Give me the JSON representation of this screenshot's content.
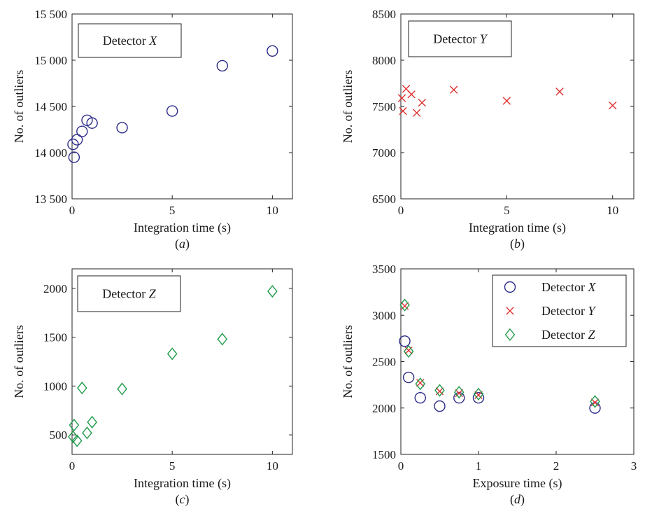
{
  "chart_data": [
    {
      "type": "scatter",
      "panel_label": "(a)",
      "xlabel": "Integration time (s)",
      "ylabel": "No. of outliers",
      "xlim": [
        0,
        11
      ],
      "ylim": [
        13500,
        15500
      ],
      "xticks": [
        0,
        5,
        10
      ],
      "xtick_labels": [
        "0",
        "5",
        "10"
      ],
      "yticks": [
        13500,
        14000,
        14500,
        15000,
        15500
      ],
      "ytick_labels": [
        "13 500",
        "14 000",
        "14 500",
        "15 000",
        "15 500"
      ],
      "grid": false,
      "legend_position": "top-left",
      "series": [
        {
          "name_prefix": "Detector ",
          "name_italic": "X",
          "marker": "circle",
          "color": "#2b2b8a",
          "points": [
            [
              0.05,
              14090
            ],
            [
              0.1,
              13950
            ],
            [
              0.25,
              14140
            ],
            [
              0.5,
              14230
            ],
            [
              0.75,
              14350
            ],
            [
              1.0,
              14320
            ],
            [
              2.5,
              14270
            ],
            [
              5.0,
              14450
            ],
            [
              7.5,
              14940
            ],
            [
              10.0,
              15100
            ]
          ]
        }
      ]
    },
    {
      "type": "scatter",
      "panel_label": "(b)",
      "xlabel": "Integration time (s)",
      "ylabel": "No. of outliers",
      "xlim": [
        0,
        11
      ],
      "ylim": [
        6500,
        8500
      ],
      "xticks": [
        0,
        5,
        10
      ],
      "xtick_labels": [
        "0",
        "5",
        "10"
      ],
      "yticks": [
        6500,
        7000,
        7500,
        8000,
        8500
      ],
      "ytick_labels": [
        "6500",
        "7000",
        "7500",
        "8000",
        "8500"
      ],
      "grid": false,
      "legend_position": "top-left",
      "series": [
        {
          "name_prefix": "Detector ",
          "name_italic": "Y",
          "marker": "x",
          "color": "#e03030",
          "points": [
            [
              0.05,
              7590
            ],
            [
              0.1,
              7450
            ],
            [
              0.25,
              7690
            ],
            [
              0.5,
              7630
            ],
            [
              0.75,
              7430
            ],
            [
              1.0,
              7540
            ],
            [
              2.5,
              7680
            ],
            [
              5.0,
              7560
            ],
            [
              7.5,
              7660
            ],
            [
              10.0,
              7510
            ]
          ]
        }
      ]
    },
    {
      "type": "scatter",
      "panel_label": "(c)",
      "xlabel": "Integration time (s)",
      "ylabel": "No. of outliers",
      "xlim": [
        0,
        11
      ],
      "ylim": [
        300,
        2200
      ],
      "xticks": [
        0,
        5,
        10
      ],
      "xtick_labels": [
        "0",
        "5",
        "10"
      ],
      "yticks": [
        500,
        1000,
        1500,
        2000
      ],
      "ytick_labels": [
        "500",
        "1000",
        "1500",
        "2000"
      ],
      "grid": false,
      "legend_position": "top-left",
      "series": [
        {
          "name_prefix": "Detector ",
          "name_italic": "Z",
          "marker": "diamond",
          "color": "#1f9a4a",
          "points": [
            [
              0.05,
              480
            ],
            [
              0.1,
              600
            ],
            [
              0.25,
              440
            ],
            [
              0.5,
              980
            ],
            [
              0.75,
              520
            ],
            [
              1.0,
              630
            ],
            [
              2.5,
              970
            ],
            [
              5.0,
              1330
            ],
            [
              7.5,
              1480
            ],
            [
              10.0,
              1970
            ]
          ]
        }
      ]
    },
    {
      "type": "scatter",
      "panel_label": "(d)",
      "xlabel": "Exposure time (s)",
      "ylabel": "No. of outliers",
      "xlim": [
        0,
        3
      ],
      "ylim": [
        1500,
        3500
      ],
      "xticks": [
        0,
        1,
        2,
        3
      ],
      "xtick_labels": [
        "0",
        "1",
        "2",
        "3"
      ],
      "yticks": [
        1500,
        2000,
        2500,
        3000,
        3500
      ],
      "ytick_labels": [
        "1500",
        "2000",
        "2500",
        "3000",
        "3500"
      ],
      "grid": false,
      "legend_position": "top-right",
      "series": [
        {
          "name_prefix": "Detector ",
          "name_italic": "X",
          "marker": "circle",
          "color": "#2b2b8a",
          "points": [
            [
              0.05,
              2720
            ],
            [
              0.1,
              2330
            ],
            [
              0.25,
              2110
            ],
            [
              0.5,
              2020
            ],
            [
              0.75,
              2110
            ],
            [
              1.0,
              2110
            ],
            [
              2.5,
              2000
            ]
          ]
        },
        {
          "name_prefix": "Detector ",
          "name_italic": "Y",
          "marker": "x",
          "color": "#e03030",
          "points": [
            [
              0.05,
              3100
            ],
            [
              0.1,
              2620
            ],
            [
              0.25,
              2270
            ],
            [
              0.5,
              2180
            ],
            [
              0.75,
              2160
            ],
            [
              1.0,
              2140
            ],
            [
              2.5,
              2060
            ]
          ]
        },
        {
          "name_prefix": "Detector ",
          "name_italic": "Z",
          "marker": "diamond",
          "color": "#1f9a4a",
          "points": [
            [
              0.05,
              3110
            ],
            [
              0.1,
              2610
            ],
            [
              0.25,
              2260
            ],
            [
              0.5,
              2190
            ],
            [
              0.75,
              2170
            ],
            [
              1.0,
              2150
            ],
            [
              2.5,
              2070
            ]
          ]
        }
      ]
    }
  ]
}
